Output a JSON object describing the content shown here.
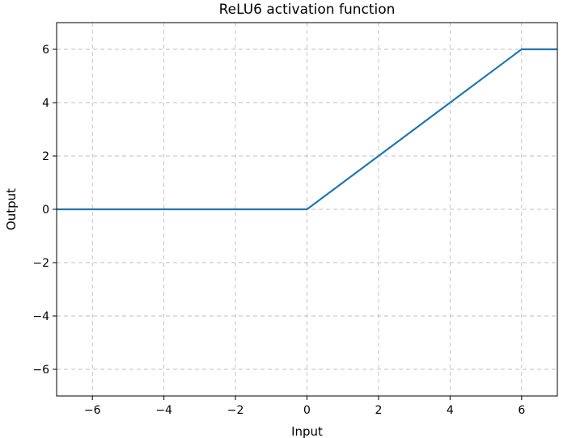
{
  "chart_data": {
    "type": "line",
    "title": "ReLU6 activation function",
    "xlabel": "Input",
    "ylabel": "Output",
    "xlim": [
      -7,
      7
    ],
    "ylim": [
      -7,
      7
    ],
    "xticks": [
      -6,
      -4,
      -2,
      0,
      2,
      4,
      6
    ],
    "yticks": [
      -6,
      -4,
      -2,
      0,
      2,
      4,
      6
    ],
    "xtick_labels": [
      "−6",
      "−4",
      "−2",
      "0",
      "2",
      "4",
      "6"
    ],
    "ytick_labels": [
      "−6",
      "−4",
      "−2",
      "0",
      "2",
      "4",
      "6"
    ],
    "grid": true,
    "series": [
      {
        "color": "#1f77b4",
        "x": [
          -7,
          0,
          6,
          7
        ],
        "y": [
          0,
          0,
          6,
          6
        ]
      }
    ]
  }
}
